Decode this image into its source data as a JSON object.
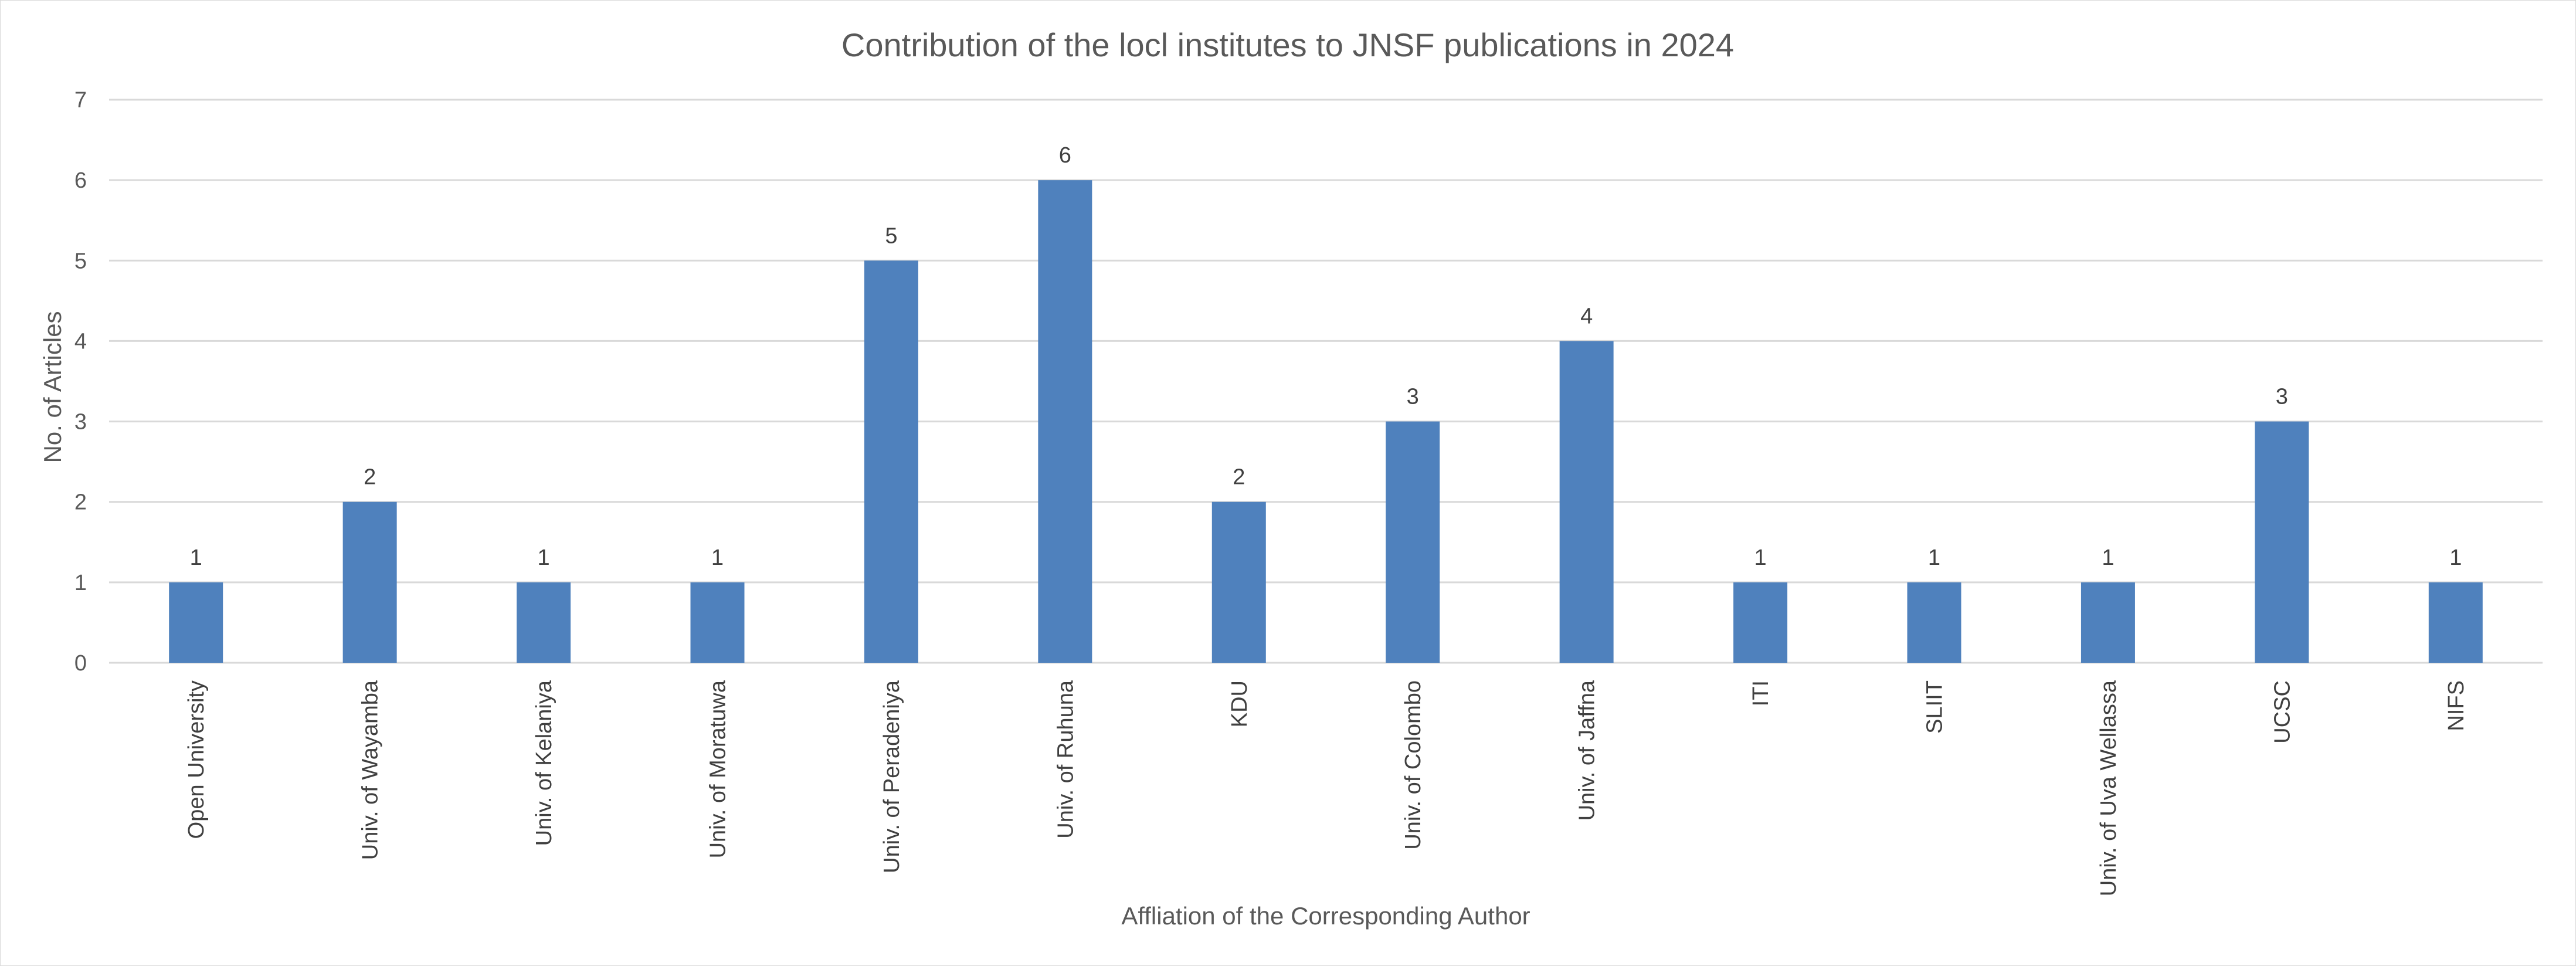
{
  "chart_data": {
    "type": "bar",
    "title": "Contribution of the locl institutes to JNSF publications in 2024",
    "xlabel": "Affliation of the Corresponding Author",
    "ylabel": "No. of Articles",
    "ylim": [
      0,
      7
    ],
    "yticks": [
      0,
      1,
      2,
      3,
      4,
      5,
      6,
      7
    ],
    "grid": true,
    "legend": "none",
    "bar_color": "#4F81BD",
    "categories": [
      "Open University",
      "Univ. of Wayamba",
      "Univ. of Kelaniya",
      "Univ. of Moratuwa",
      "Univ. of Peradeniya",
      "Univ. of Ruhuna",
      "KDU",
      "Univ. of Colombo",
      "Univ. of Jaffna",
      "ITI",
      "SLIIT",
      "Univ. of Uva Wellassa",
      "UCSC",
      "NIFS"
    ],
    "values": [
      1,
      2,
      1,
      1,
      5,
      6,
      2,
      3,
      4,
      1,
      1,
      1,
      3,
      1
    ]
  }
}
